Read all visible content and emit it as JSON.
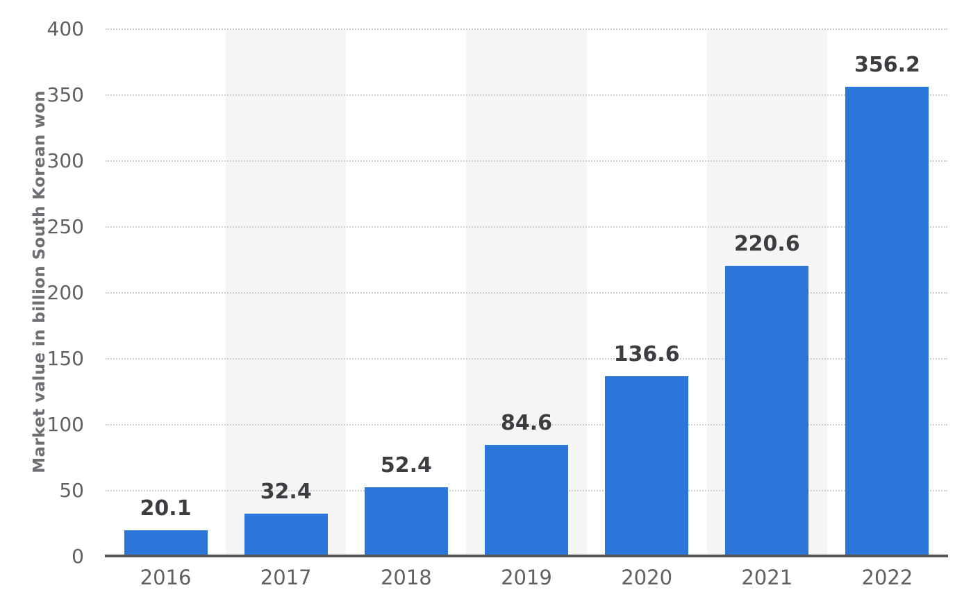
{
  "chart_data": {
    "type": "bar",
    "title": "",
    "categories": [
      "2016",
      "2017",
      "2018",
      "2019",
      "2020",
      "2021",
      "2022"
    ],
    "values": [
      20.1,
      32.4,
      52.4,
      84.6,
      136.6,
      220.6,
      356.2
    ],
    "value_labels": [
      "20.1",
      "32.4",
      "52.4",
      "84.6",
      "136.6",
      "220.6",
      "356.2"
    ],
    "xlabel": "",
    "ylabel": "Market value in billion South Korean won",
    "ylim": [
      0,
      400
    ],
    "yticks": [
      0,
      50,
      100,
      150,
      200,
      250,
      300,
      350,
      400
    ],
    "grid": "horizontal-dotted",
    "legend": "none",
    "colors": {
      "bar": "#2b76d8",
      "column_band": "#f5f5f6",
      "gridline": "#cfcfd1",
      "axis_line": "#55555a",
      "tick_text": "#5f5f65",
      "value_text": "#3d3d41",
      "ylabel_text": "#6e6e73"
    }
  }
}
